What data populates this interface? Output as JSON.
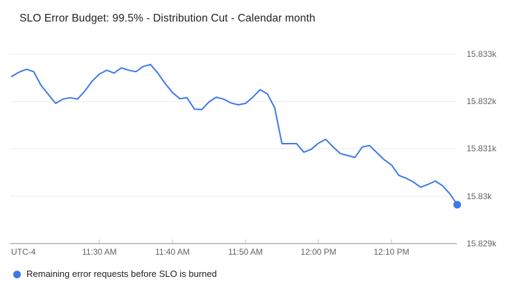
{
  "chart_data": {
    "type": "line",
    "title": "SLO Error Budget: 99.5% - Distribution Cut - Calendar month",
    "grid": "horizontal",
    "legend_position": "bottom-left",
    "x_axis": {
      "timezone_label": "UTC-4",
      "ticks": [
        {
          "label": "11:30 AM",
          "time": "11:30"
        },
        {
          "label": "11:40 AM",
          "time": "11:40"
        },
        {
          "label": "11:50 AM",
          "time": "11:50"
        },
        {
          "label": "12:00 PM",
          "time": "12:00"
        },
        {
          "label": "12:10 PM",
          "time": "12:10"
        }
      ]
    },
    "y_axis": {
      "side": "right",
      "ylim": [
        15829,
        15833
      ],
      "ticks": [
        {
          "label": "15.833k",
          "value": 15833
        },
        {
          "label": "15.832k",
          "value": 15832
        },
        {
          "label": "15.831k",
          "value": 15831
        },
        {
          "label": "15.83k",
          "value": 15830
        },
        {
          "label": "15.829k",
          "value": 15829
        }
      ]
    },
    "x": [
      "11:18",
      "11:19",
      "11:20",
      "11:21",
      "11:22",
      "11:23",
      "11:24",
      "11:25",
      "11:26",
      "11:27",
      "11:28",
      "11:29",
      "11:30",
      "11:31",
      "11:32",
      "11:33",
      "11:34",
      "11:35",
      "11:36",
      "11:37",
      "11:38",
      "11:39",
      "11:40",
      "11:41",
      "11:42",
      "11:43",
      "11:44",
      "11:45",
      "11:46",
      "11:47",
      "11:48",
      "11:49",
      "11:50",
      "11:51",
      "11:52",
      "11:53",
      "11:54",
      "11:55",
      "11:56",
      "11:57",
      "11:58",
      "11:59",
      "12:00",
      "12:01",
      "12:02",
      "12:03",
      "12:04",
      "12:05",
      "12:06",
      "12:07",
      "12:08",
      "12:09",
      "12:10",
      "12:11",
      "12:12",
      "12:13",
      "12:14",
      "12:15",
      "12:16",
      "12:17",
      "12:18",
      "12:19"
    ],
    "series": [
      {
        "name": "Remaining error requests before SLO is burned",
        "color": "#3B78E8",
        "end_marker": true,
        "values": [
          15832.53,
          15832.62,
          15832.68,
          15832.63,
          15832.34,
          15832.15,
          15831.96,
          15832.05,
          15832.08,
          15832.05,
          15832.22,
          15832.43,
          15832.58,
          15832.66,
          15832.6,
          15832.71,
          15832.66,
          15832.63,
          15832.74,
          15832.78,
          15832.6,
          15832.38,
          15832.19,
          15832.06,
          15832.08,
          15831.84,
          15831.83,
          15831.99,
          15832.09,
          15832.05,
          15831.97,
          15831.93,
          15831.96,
          15832.09,
          15832.25,
          15832.16,
          15831.87,
          15831.11,
          15831.11,
          15831.11,
          15830.93,
          15830.99,
          15831.12,
          15831.2,
          15831.04,
          15830.9,
          15830.86,
          15830.82,
          15831.04,
          15831.07,
          15830.92,
          15830.77,
          15830.66,
          15830.44,
          15830.38,
          15830.3,
          15830.19,
          15830.25,
          15830.32,
          15830.22,
          15830.05,
          15829.82
        ]
      }
    ]
  },
  "colors": {
    "series_blue": "#3B78E8",
    "gridline": "#ebebeb",
    "axis_line": "#8a8a8a",
    "tick_mark": "#c4c4c4",
    "axis_text": "#616161",
    "title_text": "#212121",
    "background": "#ffffff"
  }
}
